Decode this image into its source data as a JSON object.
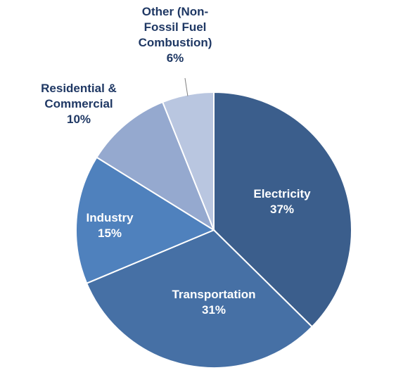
{
  "chart_data": {
    "type": "pie",
    "start": "12 o'clock",
    "direction": "clockwise",
    "slices": [
      {
        "label_lines": [
          "Electricity",
          "37%"
        ],
        "value": 37,
        "color": "#3b5e8c",
        "label_color": "#ffffff",
        "label_inside": true
      },
      {
        "label_lines": [
          "Transportation",
          "31%"
        ],
        "value": 31,
        "color": "#4670a5",
        "label_color": "#ffffff",
        "label_inside": true
      },
      {
        "label_lines": [
          "Industry",
          "15%"
        ],
        "value": 15,
        "color": "#4f81bd",
        "label_color": "#ffffff",
        "label_inside": true
      },
      {
        "label_lines": [
          "Residential &",
          "Commercial",
          "10%"
        ],
        "value": 10,
        "color": "#95a9cf",
        "label_color": "#1f3864",
        "label_inside": false
      },
      {
        "label_lines": [
          "Other (Non-",
          "Fossil Fuel",
          "Combustion)",
          "6%"
        ],
        "value": 6,
        "color": "#b9c6e0",
        "label_color": "#1f3864",
        "label_inside": false
      }
    ]
  }
}
